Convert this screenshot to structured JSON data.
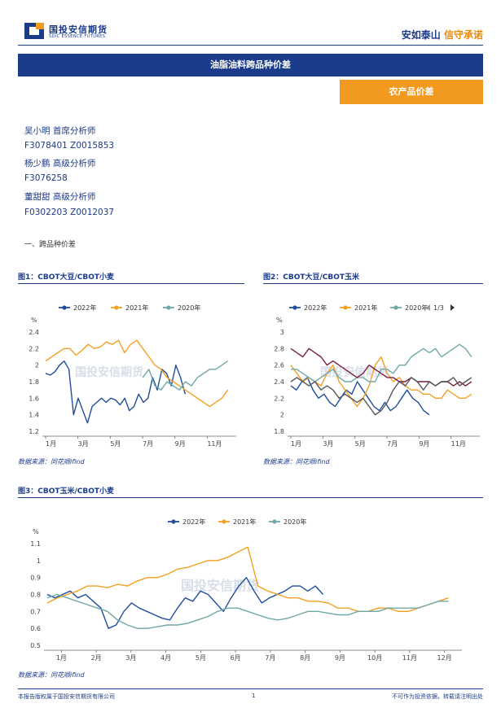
{
  "header": {
    "logo_cn": "国投安信期货",
    "logo_en": "SDIC ESSENCE FUTURES",
    "slogan_a": "安如泰山",
    "slogan_b": "信守承诺"
  },
  "title": "油脂油料跨品种价差",
  "tag": "农产品价差",
  "analysts": [
    "吴小明 首席分析师",
    "F3078401 Z0015853",
    "杨少鹏 高级分析师",
    "F3076258",
    "董甜甜 高级分析师",
    "F0302203 Z0012037"
  ],
  "section_title": "一、跨品种价差",
  "figures": [
    {
      "title": "图1：CBOT大豆/CBOT小麦",
      "source": "数据来源：同花顺ifind"
    },
    {
      "title": "图2：CBOT大豆/CBOT玉米",
      "source": "数据来源：同花顺ifind"
    },
    {
      "title": "图3：CBOT玉米/CBOT小麦",
      "source": "数据来源：同花顺ifind"
    }
  ],
  "watermark": "国投安信期货",
  "colors": {
    "brand": "#1a3a8a",
    "accent": "#f29a1f",
    "s2022": "#1f4e9c",
    "s2021": "#f2a023",
    "s2020": "#6fa8a8",
    "s4": "#7a1f3d",
    "s5": "#555555"
  },
  "chart_data": [
    {
      "type": "line",
      "ylabel": "%",
      "ylim": [
        1.2,
        2.4
      ],
      "yticks": [
        "1.2",
        "1.4",
        "1.6",
        "1.8",
        "2",
        "2.2",
        "2.4"
      ],
      "xticks": [
        "1月",
        "3月",
        "5月",
        "7月",
        "9月",
        "11月"
      ],
      "series": [
        {
          "name": "2022年",
          "color": "#1f4e9c",
          "values": [
            1.9,
            1.88,
            1.92,
            2.0,
            2.05,
            1.95,
            1.4,
            1.6,
            1.45,
            1.3,
            1.5,
            1.55,
            1.6,
            1.55,
            1.6,
            1.58,
            1.52,
            1.6,
            1.45,
            1.5,
            1.65,
            1.55,
            1.6,
            1.85,
            1.7,
            1.95,
            1.9,
            1.75,
            2.0,
            1.85,
            1.65
          ]
        },
        {
          "name": "2021年",
          "color": "#f2a023",
          "values": [
            2.05,
            2.1,
            2.15,
            2.2,
            2.2,
            2.12,
            2.18,
            2.25,
            2.2,
            2.22,
            2.28,
            2.25,
            2.3,
            2.15,
            2.25,
            2.3,
            2.2,
            2.1,
            2.0,
            1.95,
            1.85,
            1.8,
            1.75,
            1.7,
            1.65,
            1.6,
            1.55,
            1.5,
            1.55,
            1.6,
            1.7
          ]
        },
        {
          "name": "2020年",
          "color": "#6fa8a8",
          "values": [
            null,
            null,
            null,
            null,
            null,
            null,
            null,
            null,
            null,
            null,
            null,
            null,
            null,
            null,
            null,
            null,
            1.85,
            1.95,
            1.75,
            1.7,
            1.8,
            1.75,
            1.7,
            1.8,
            1.75,
            1.85,
            1.9,
            1.95,
            1.95,
            2.0,
            2.05
          ]
        }
      ]
    },
    {
      "type": "line",
      "ylabel": "%",
      "ylim": [
        1.8,
        3.0
      ],
      "yticks": [
        "1.8",
        "2",
        "2.2",
        "2.4",
        "2.6",
        "2.8",
        "3"
      ],
      "xticks": [
        "1月",
        "3月",
        "5月",
        "7月",
        "9月",
        "11月"
      ],
      "legend_page": "1/3",
      "series": [
        {
          "name": "2022年",
          "color": "#1f4e9c",
          "values": [
            2.35,
            2.3,
            2.4,
            2.45,
            2.3,
            2.2,
            2.25,
            2.15,
            2.1,
            2.2,
            2.3,
            2.25,
            2.4,
            2.3,
            2.2,
            2.1,
            2.05,
            2.15,
            2.05,
            2.1,
            2.2,
            2.3,
            2.2,
            2.15,
            2.05,
            2.0
          ]
        },
        {
          "name": "2021年",
          "color": "#f2a023",
          "values": [
            2.6,
            2.5,
            2.4,
            2.45,
            2.4,
            2.35,
            2.5,
            2.6,
            2.4,
            2.3,
            2.2,
            2.1,
            2.2,
            2.35,
            2.6,
            2.7,
            2.5,
            2.4,
            2.45,
            2.35,
            2.3,
            2.3,
            2.25,
            2.25,
            2.2,
            2.2,
            2.3,
            2.25,
            2.2,
            2.2,
            2.25
          ]
        },
        {
          "name": "2020年",
          "color": "#6fa8a8",
          "values": [
            2.55,
            2.55,
            2.5,
            2.45,
            2.4,
            2.45,
            2.5,
            2.55,
            2.45,
            2.4,
            2.4,
            2.45,
            2.45,
            2.4,
            2.4,
            2.55,
            2.55,
            2.5,
            2.6,
            2.6,
            2.7,
            2.75,
            2.8,
            2.75,
            2.8,
            2.7,
            2.75,
            2.8,
            2.85,
            2.8,
            2.7
          ]
        },
        {
          "name": "",
          "color": "#7a1f3d",
          "values": [
            2.8,
            2.75,
            2.7,
            2.8,
            2.75,
            2.7,
            2.6,
            2.65,
            2.6,
            2.55,
            2.5,
            2.45,
            2.5,
            2.6,
            2.55,
            2.5,
            2.45,
            2.45,
            2.4,
            2.4,
            2.45,
            2.4,
            2.4,
            2.4,
            2.35,
            2.4,
            2.4,
            2.35,
            2.4,
            2.35,
            2.4
          ]
        },
        {
          "name": "",
          "color": "#555555",
          "values": [
            2.4,
            2.45,
            2.4,
            2.35,
            2.4,
            2.3,
            2.35,
            2.3,
            2.2,
            2.25,
            2.2,
            2.15,
            2.2,
            2.1,
            2.0,
            2.05,
            2.15,
            2.3,
            2.4,
            2.35,
            2.45,
            2.4,
            2.3,
            2.4,
            2.35,
            2.4,
            2.4,
            2.45,
            2.35,
            2.4,
            2.45
          ]
        }
      ]
    },
    {
      "type": "line",
      "ylabel": "%",
      "ylim": [
        0.5,
        1.1
      ],
      "yticks": [
        "0.5",
        "0.6",
        "0.7",
        "0.8",
        "0.9",
        "1",
        "1.1"
      ],
      "xticks": [
        "1月",
        "2月",
        "3月",
        "4月",
        "5月",
        "6月",
        "7月",
        "8月",
        "9月",
        "10月",
        "11月",
        "12月"
      ],
      "series": [
        {
          "name": "2022年",
          "color": "#1f4e9c",
          "values": [
            0.8,
            0.78,
            0.8,
            0.82,
            0.78,
            0.8,
            0.76,
            0.72,
            0.6,
            0.62,
            0.7,
            0.75,
            0.72,
            0.7,
            0.68,
            0.66,
            0.65,
            0.72,
            0.78,
            0.76,
            0.82,
            0.8,
            0.75,
            0.7,
            0.78,
            0.85,
            0.9,
            0.82,
            0.75,
            0.78,
            0.8,
            0.82,
            0.85,
            0.85,
            0.82,
            0.85,
            0.8
          ]
        },
        {
          "name": "2021年",
          "color": "#f2a023",
          "values": [
            0.75,
            0.78,
            0.8,
            0.82,
            0.85,
            0.85,
            0.84,
            0.86,
            0.85,
            0.88,
            0.9,
            0.9,
            0.92,
            0.95,
            0.96,
            0.98,
            1.0,
            1.0,
            1.02,
            1.05,
            1.08,
            0.85,
            0.82,
            0.8,
            0.78,
            0.78,
            0.76,
            0.76,
            0.75,
            0.72,
            0.72,
            0.7,
            0.7,
            0.72,
            0.72,
            0.7,
            0.7,
            0.72,
            0.74,
            0.76,
            0.78
          ]
        },
        {
          "name": "2020年",
          "color": "#6fa8a8",
          "values": [
            0.78,
            0.8,
            0.78,
            0.76,
            0.74,
            0.72,
            0.7,
            0.65,
            0.62,
            0.6,
            0.6,
            0.61,
            0.62,
            0.62,
            0.63,
            0.65,
            0.67,
            0.7,
            0.72,
            0.72,
            0.7,
            0.68,
            0.66,
            0.65,
            0.66,
            0.68,
            0.7,
            0.7,
            0.69,
            0.68,
            0.68,
            0.7,
            0.7,
            0.7,
            0.72,
            0.72,
            0.72,
            0.72,
            0.74,
            0.76,
            0.76
          ]
        }
      ]
    }
  ],
  "footer": {
    "left": "本报告版权属于国投安信期货有限公司",
    "page": "1",
    "right": "不可作为投资依据，转载请注明出处"
  }
}
